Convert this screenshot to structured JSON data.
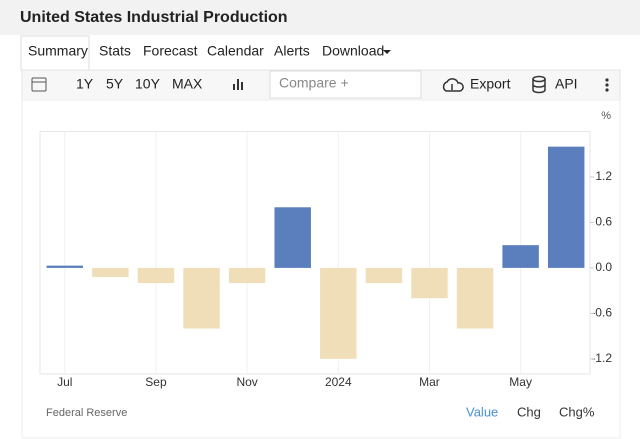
{
  "header": {
    "title": "United States Industrial Production"
  },
  "tabs": [
    "Summary",
    "Stats",
    "Forecast",
    "Calendar",
    "Alerts",
    "Download"
  ],
  "toolbar": {
    "ranges": [
      "1Y",
      "5Y",
      "10Y",
      "MAX"
    ],
    "compare_placeholder": "Compare +",
    "export": "Export",
    "api": "API"
  },
  "chart_data": {
    "type": "bar",
    "unit": "%",
    "categories": [
      "Jul",
      null,
      "Sep",
      null,
      "Nov",
      null,
      "2024",
      null,
      "Mar",
      null,
      "May",
      null
    ],
    "values": [
      0.03,
      -0.12,
      -0.2,
      -0.8,
      -0.2,
      0.8,
      -1.2,
      -0.2,
      -0.4,
      -0.8,
      0.3,
      1.6
    ],
    "positive_color": "#5b7fbd",
    "negative_color": "#f0deb8",
    "ylim": [
      -1.4,
      1.8
    ],
    "yticks": [
      -1.2,
      -0.6,
      {
        "value": 0,
        "label": "0.0"
      },
      0.6,
      1.2
    ],
    "grid": false
  },
  "footer": {
    "source": "Federal Reserve",
    "modes": [
      "Value",
      "Chg",
      "Chg%"
    ]
  }
}
